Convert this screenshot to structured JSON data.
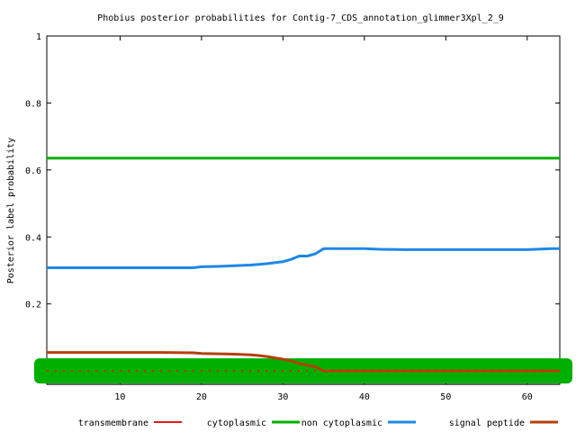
{
  "chart_data": {
    "type": "line",
    "title": "Phobius posterior probabilities for Contig-7_CDS_annotation_glimmer3Xpl_2_9",
    "xlabel": "",
    "ylabel": "Posterior label probability",
    "xlim": [
      1,
      64
    ],
    "ylim": [
      -0.04,
      1.0
    ],
    "x_ticks": [
      10,
      20,
      30,
      40,
      50,
      60
    ],
    "y_ticks": [
      0.2,
      0.4,
      0.6,
      0.8,
      1
    ],
    "y_tick_labels": [
      "0.2",
      "0.4",
      "0.6",
      "0.8",
      "1"
    ],
    "grid": false,
    "legend_position": "bottom",
    "series": [
      {
        "name": "transmembrane",
        "color": "#e41a1c",
        "style": "dotted",
        "x": [
          1,
          64
        ],
        "y": [
          0.0,
          0.0
        ]
      },
      {
        "name": "cytoplasmic",
        "color": "#00b000",
        "style": "band",
        "x": [
          1,
          64
        ],
        "y": [
          0.0,
          0.0
        ]
      },
      {
        "name": "non cytoplasmic",
        "color": "#00b000",
        "style": "solid",
        "x": [
          1,
          64
        ],
        "y": [
          0.635,
          0.635
        ]
      },
      {
        "name": "signal peptide",
        "color": "#1e88e5",
        "style": "solid",
        "x": [
          1,
          5,
          10,
          15,
          19,
          20,
          22,
          24,
          26,
          27,
          28,
          29,
          30,
          31,
          32,
          33,
          34,
          35,
          40,
          42,
          45,
          50,
          55,
          60,
          63,
          64
        ],
        "y": [
          0.308,
          0.308,
          0.308,
          0.308,
          0.308,
          0.311,
          0.312,
          0.314,
          0.316,
          0.318,
          0.32,
          0.323,
          0.326,
          0.333,
          0.343,
          0.343,
          0.35,
          0.365,
          0.365,
          0.363,
          0.362,
          0.362,
          0.362,
          0.362,
          0.365,
          0.365
        ]
      },
      {
        "name": "signal peptide",
        "color": "#b5400a",
        "style": "solid",
        "x": [
          1,
          5,
          10,
          15,
          19,
          20,
          22,
          24,
          26,
          27,
          28,
          29,
          30,
          31,
          32,
          33,
          34,
          35,
          40,
          45,
          50,
          55,
          60,
          64
        ],
        "y": [
          0.055,
          0.055,
          0.055,
          0.055,
          0.054,
          0.052,
          0.051,
          0.05,
          0.048,
          0.046,
          0.043,
          0.039,
          0.035,
          0.03,
          0.022,
          0.017,
          0.012,
          0.0,
          0.0,
          0.0,
          0.0,
          0.0,
          0.0,
          0.0
        ]
      }
    ]
  }
}
